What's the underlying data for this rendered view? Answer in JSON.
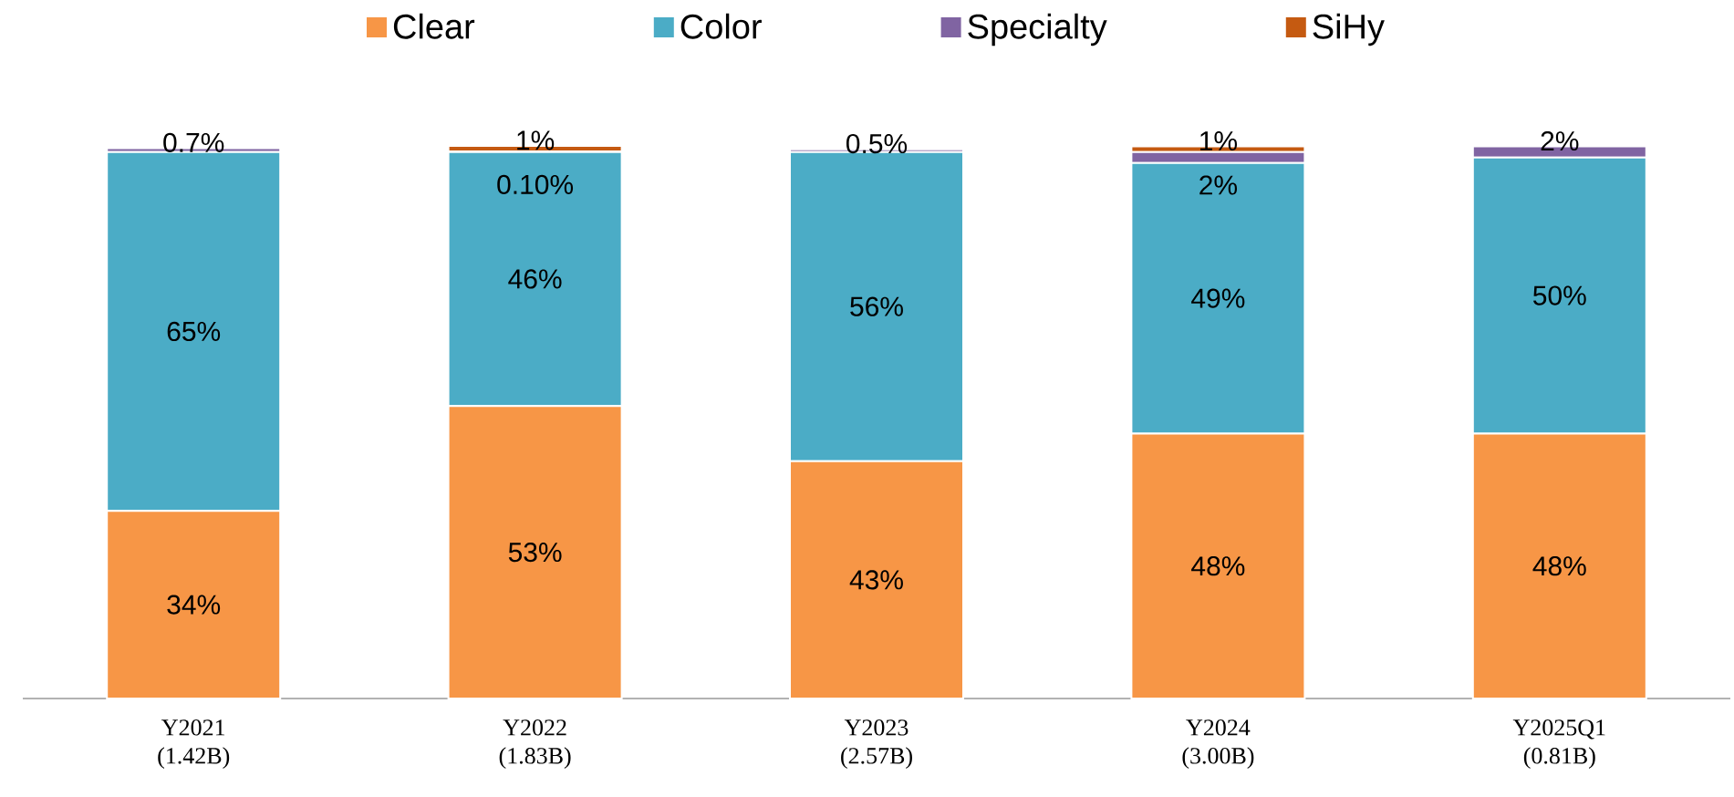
{
  "chart_data": {
    "type": "bar",
    "stacked": true,
    "legend": "top",
    "categories": [
      "Y2021 (1.42B)",
      "Y2022 (1.83B)",
      "Y2023 (2.57B)",
      "Y2024 (3.00B)",
      "Y2025Q1 (0.81B)"
    ],
    "series": [
      {
        "name": "Clear",
        "color": "#f79646",
        "values": [
          34,
          53,
          43,
          48,
          48
        ],
        "value_labels": [
          "34%",
          "53%",
          "43%",
          "48%",
          "48%"
        ]
      },
      {
        "name": "Color",
        "color": "#4bacc6",
        "values": [
          65,
          46,
          56,
          49,
          50
        ],
        "value_labels": [
          "65%",
          "46%",
          "56%",
          "49%",
          "50%"
        ]
      },
      {
        "name": "Specialty",
        "color": "#8064a2",
        "values": [
          0.7,
          0.1,
          0.5,
          2,
          2
        ],
        "value_labels": [
          "0.7%",
          "0.10%",
          "0.5%",
          "2%",
          "2%"
        ]
      },
      {
        "name": "SiHy",
        "color": "#c55a11",
        "values": [
          null,
          1,
          null,
          1,
          null
        ],
        "value_labels": [
          null,
          "1%",
          null,
          "1%",
          null
        ]
      }
    ]
  }
}
